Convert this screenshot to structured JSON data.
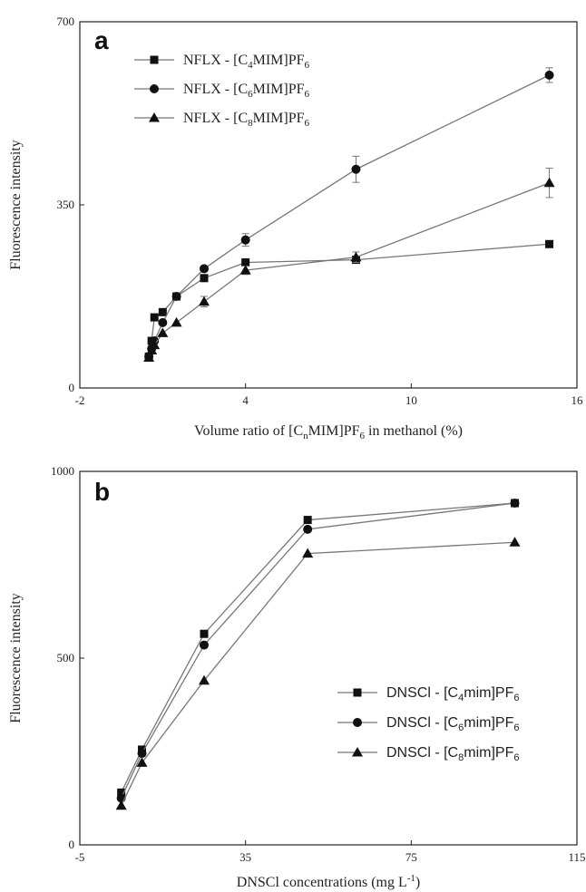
{
  "chart_data": [
    {
      "type": "line",
      "panel": "a",
      "xlabel": "Volume ratio of [CnMIM]PF6 in methanol (%)",
      "xlabel_parts": [
        "Volume ratio of [C",
        "n",
        "MIM]PF",
        "6",
        " in methanol (%)"
      ],
      "ylabel": "Fluorescence intensity",
      "xlim": [
        -2,
        16
      ],
      "ylim": [
        0,
        700
      ],
      "xticks": [
        -2,
        4,
        10,
        16
      ],
      "yticks": [
        0,
        350,
        700
      ],
      "legend_position": "top-left",
      "grid": false,
      "series": [
        {
          "name": "NFLX - [C4MIM]PF6",
          "label_parts": [
            "NFLX - [C",
            "4",
            "MIM]PF",
            "6"
          ],
          "marker": "square",
          "x": [
            0.5,
            0.6,
            0.7,
            1.0,
            1.5,
            2.5,
            4.0,
            8.0,
            15.0
          ],
          "y": [
            60,
            90,
            135,
            145,
            175,
            210,
            240,
            245,
            275
          ],
          "err": [
            0,
            0,
            0,
            0,
            0,
            0,
            0,
            0,
            0
          ]
        },
        {
          "name": "NFLX - [C6MIM]PF6",
          "label_parts": [
            "NFLX - [C",
            "6",
            "MIM]PF",
            "6"
          ],
          "marker": "circle",
          "x": [
            0.5,
            0.6,
            0.7,
            1.0,
            1.5,
            2.5,
            4.0,
            8.0,
            15.0
          ],
          "y": [
            60,
            75,
            90,
            125,
            175,
            228,
            283,
            418,
            598
          ],
          "err": [
            0,
            0,
            0,
            0,
            0,
            5,
            12,
            25,
            14
          ]
        },
        {
          "name": "NFLX - [C8MIM]PF6",
          "label_parts": [
            "NFLX - [C",
            "8",
            "MIM]PF",
            "6"
          ],
          "marker": "triangle",
          "x": [
            0.5,
            0.6,
            0.7,
            1.0,
            1.5,
            2.5,
            4.0,
            8.0,
            15.0
          ],
          "y": [
            58,
            72,
            82,
            105,
            125,
            165,
            225,
            250,
            392
          ],
          "err": [
            0,
            0,
            0,
            0,
            0,
            10,
            8,
            10,
            28
          ]
        }
      ]
    },
    {
      "type": "line",
      "panel": "b",
      "xlabel": "DNSCl concentrations (mg L-1)",
      "xlabel_parts": [
        "DNSCl concentrations (mg L",
        "-1",
        ")"
      ],
      "ylabel": "Fluorescence intensity",
      "xlim": [
        -5,
        115
      ],
      "ylim": [
        0,
        1000
      ],
      "xticks": [
        -5,
        35,
        75,
        115
      ],
      "yticks": [
        0,
        500,
        1000
      ],
      "legend_position": "bottom-right",
      "grid": false,
      "series": [
        {
          "name": "DNSCl - [C4mim]PF6",
          "label_parts": [
            "DNSCl - [C",
            "4",
            "mim]PF",
            "6"
          ],
          "marker": "square",
          "x": [
            5,
            10,
            25,
            50,
            100
          ],
          "y": [
            140,
            255,
            565,
            870,
            915
          ],
          "err": [
            0,
            0,
            0,
            0,
            0
          ]
        },
        {
          "name": "DNSCl - [C6mim]PF6",
          "label_parts": [
            "DNSCl - [C",
            "6",
            "mim]PF",
            "6"
          ],
          "marker": "circle",
          "x": [
            5,
            10,
            25,
            50,
            100
          ],
          "y": [
            125,
            245,
            535,
            845,
            915
          ],
          "err": [
            0,
            0,
            0,
            0,
            0
          ]
        },
        {
          "name": "DNSCl - [C8mim]PF6",
          "label_parts": [
            "DNSCl - [C",
            "8",
            "mim]PF",
            "6"
          ],
          "marker": "triangle",
          "x": [
            5,
            10,
            25,
            50,
            100
          ],
          "y": [
            105,
            220,
            440,
            780,
            810
          ],
          "err": [
            0,
            0,
            0,
            0,
            0
          ]
        }
      ]
    }
  ]
}
